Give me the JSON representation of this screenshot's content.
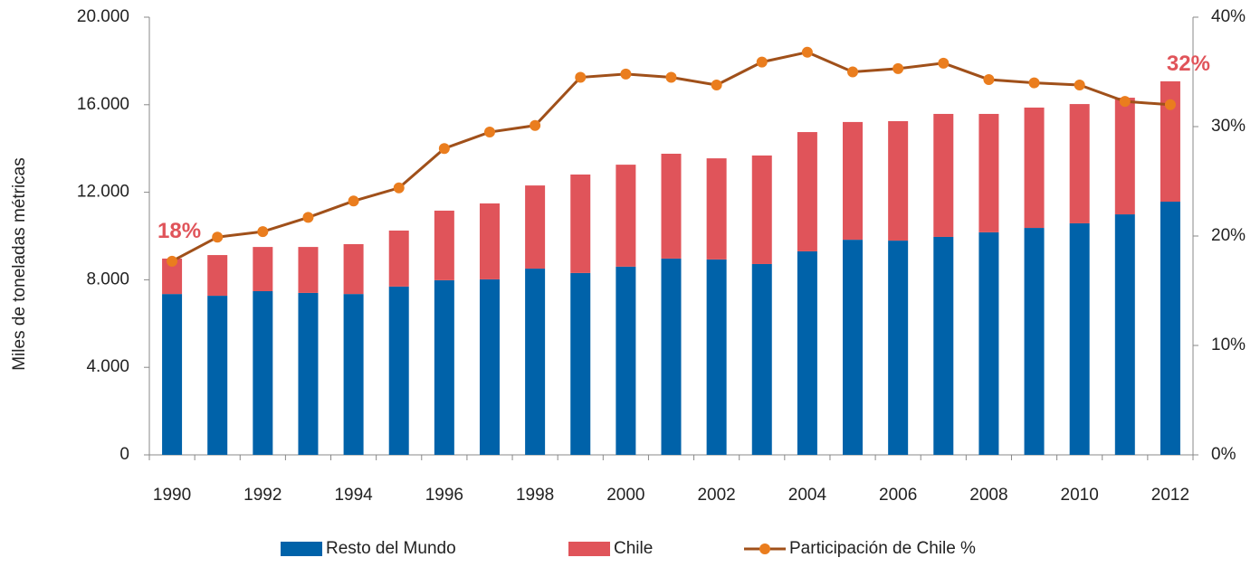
{
  "chart_data": {
    "type": "bar",
    "y_label": "Miles de toneladas métricas",
    "categories": [
      "1990",
      null,
      "1992",
      null,
      "1994",
      null,
      "1996",
      null,
      "1998",
      null,
      "2000",
      null,
      "2002",
      null,
      "2004",
      null,
      "2006",
      null,
      "2008",
      null,
      "2010",
      null,
      "2012"
    ],
    "stacked": true,
    "series": [
      {
        "name": "Resto del Mundo",
        "color": "#0062a9",
        "values": [
          7350,
          7270,
          7480,
          7400,
          7350,
          7690,
          7980,
          8020,
          8510,
          8310,
          8600,
          8970,
          8930,
          8720,
          9300,
          9830,
          9790,
          9960,
          10170,
          10370,
          10580,
          10990,
          11570
        ]
      },
      {
        "name": "Chile",
        "color": "#e0545a",
        "values": [
          1620,
          1860,
          2020,
          2100,
          2280,
          2560,
          3180,
          3470,
          3800,
          4500,
          4660,
          4790,
          4620,
          4960,
          5450,
          5380,
          5460,
          5620,
          5410,
          5500,
          5450,
          5330,
          5500
        ]
      },
      {
        "name": "Participación de Chile %",
        "type": "line",
        "axis": "y2",
        "color": "#a0501a",
        "marker_color": "#ea7d1e",
        "values": [
          17.7,
          19.9,
          20.4,
          21.7,
          23.2,
          24.4,
          28.0,
          29.5,
          30.1,
          34.5,
          34.8,
          34.5,
          33.8,
          35.9,
          36.8,
          35.0,
          35.3,
          35.8,
          34.3,
          34.0,
          33.8,
          32.3,
          32.0
        ],
        "value_labels": [
          "18%",
          null,
          null,
          null,
          null,
          null,
          null,
          null,
          null,
          null,
          null,
          null,
          null,
          null,
          null,
          null,
          null,
          null,
          null,
          null,
          null,
          null,
          "32%"
        ]
      }
    ],
    "ylim": [
      0,
      20000
    ],
    "yticks": [
      0,
      {
        "value": 4000,
        "label": "4.000"
      },
      {
        "value": 8000,
        "label": "8.000"
      },
      {
        "value": 12000,
        "label": "12.000"
      },
      {
        "value": 16000,
        "label": "16.000"
      },
      {
        "value": 20000,
        "label": "20.000"
      }
    ],
    "y2lim": [
      0,
      40
    ],
    "y2ticks": [
      {
        "value": 0,
        "label": "0%"
      },
      {
        "value": 10,
        "label": "10%"
      },
      {
        "value": 20,
        "label": "20%"
      },
      {
        "value": 30,
        "label": "30%"
      },
      {
        "value": 40,
        "label": "40%"
      }
    ],
    "legend": "bottom"
  }
}
